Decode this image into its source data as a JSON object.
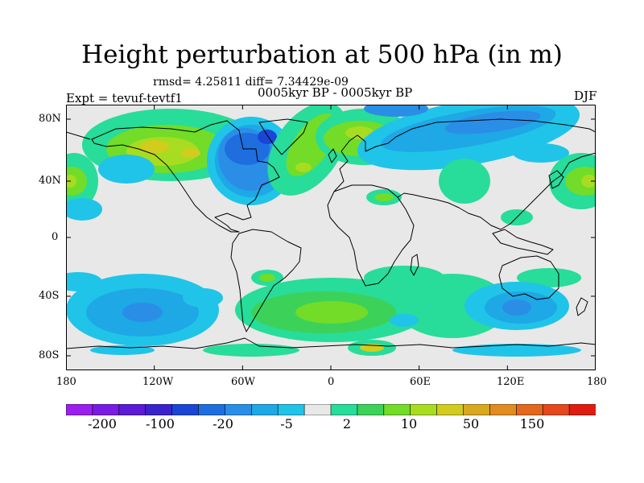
{
  "title": "Height perturbation at 500 hPa (in m)",
  "stats": "rmsd= 4.25811 diff= 7.34429e-09",
  "period": "0005kyr BP - 0005kyr BP",
  "experiment": "Expt = tevuf-tevtf1",
  "season": "DJF",
  "lat_ticks": [
    "80N",
    "40N",
    "0",
    "40S",
    "80S"
  ],
  "lon_ticks": [
    "180",
    "120W",
    "60W",
    "0",
    "60E",
    "120E",
    "180"
  ],
  "colorbar": {
    "colors": [
      "#9a1ff0",
      "#7a1ae6",
      "#5a1ad6",
      "#3a22cc",
      "#1a46d6",
      "#1e6ee0",
      "#2a8ee6",
      "#1ea8e6",
      "#20c4e8",
      "#e8e8e8",
      "#28dc9a",
      "#3cd25a",
      "#72dc28",
      "#a8dc20",
      "#d2cc1e",
      "#d8a81e",
      "#e08c1e",
      "#e2681e",
      "#e4481c",
      "#e01c10"
    ],
    "labels": [
      "-200",
      "-100",
      "-20",
      "-5",
      "2",
      "10",
      "50",
      "150"
    ]
  }
}
